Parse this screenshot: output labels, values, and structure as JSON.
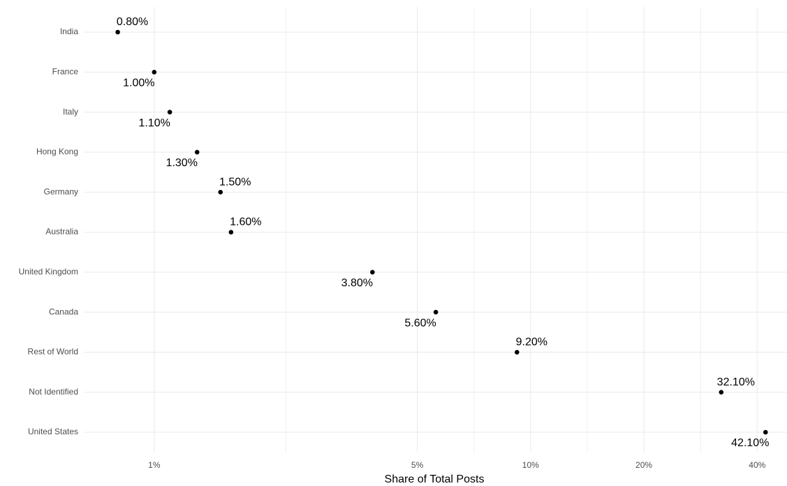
{
  "chart_data": {
    "type": "dot",
    "x_label": "Share of Total Posts",
    "categories": [
      "India",
      "France",
      "Italy",
      "Hong Kong",
      "Germany",
      "Australia",
      "United Kingdom",
      "Canada",
      "Rest of World",
      "Not Identified",
      "United States"
    ],
    "values": [
      0.8,
      1.0,
      1.1,
      1.3,
      1.5,
      1.6,
      3.8,
      5.6,
      9.2,
      32.1,
      42.1
    ],
    "value_labels": [
      "0.80%",
      "1.00%",
      "1.10%",
      "1.30%",
      "1.50%",
      "1.60%",
      "3.80%",
      "5.60%",
      "9.20%",
      "32.10%",
      "42.10%"
    ],
    "color": "#000000",
    "x_scale": "log",
    "xlim": [
      0.65,
      48
    ],
    "xticks": [
      {
        "value": 1,
        "label": "1%"
      },
      {
        "value": 5,
        "label": "5%"
      },
      {
        "value": 10,
        "label": "10%"
      },
      {
        "value": 20,
        "label": "20%"
      },
      {
        "value": 40,
        "label": "40%"
      }
    ],
    "grid": true
  }
}
